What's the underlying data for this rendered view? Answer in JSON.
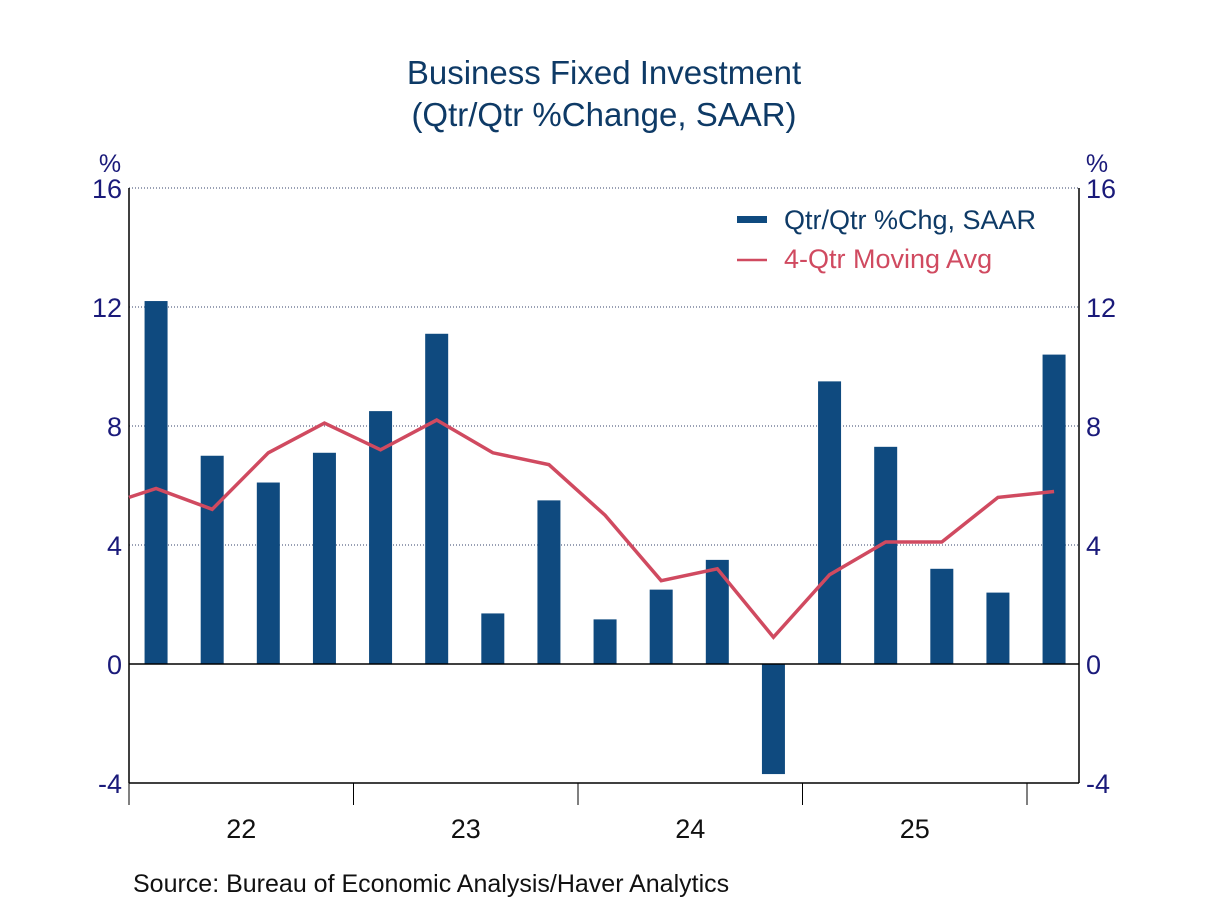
{
  "chart_data": {
    "type": "bar",
    "title": "Business Fixed Investment",
    "subtitle": "(Qtr/Qtr %Change, SAAR)",
    "ylabel_left": "%",
    "ylabel_right": "%",
    "ylim": [
      -4,
      16
    ],
    "yticks": [
      -4,
      0,
      4,
      8,
      12,
      16
    ],
    "grid": true,
    "legend_position": "top-right",
    "x_year_labels": [
      "22",
      "23",
      "24",
      "25"
    ],
    "categories": [
      "22Q1",
      "22Q2",
      "22Q3",
      "22Q4",
      "23Q1",
      "23Q2",
      "23Q3",
      "23Q4",
      "24Q1",
      "24Q2",
      "24Q3",
      "24Q4",
      "25Q1",
      "25Q2",
      "25Q3",
      "25Q4",
      "26Q1"
    ],
    "series": [
      {
        "name": "Qtr/Qtr %Chg, SAAR",
        "type": "bar",
        "color": "#0f4a7f",
        "values": [
          12.2,
          7.0,
          6.1,
          7.1,
          8.5,
          11.1,
          1.7,
          5.5,
          1.5,
          2.5,
          3.5,
          -3.7,
          9.5,
          7.3,
          3.2,
          2.4,
          10.4
        ]
      },
      {
        "name": "4-Qtr Moving Avg",
        "type": "line",
        "color": "#d04a60",
        "start_value": 5.6,
        "values": [
          5.9,
          5.2,
          7.1,
          8.1,
          7.2,
          8.2,
          7.1,
          6.7,
          5.0,
          2.8,
          3.2,
          0.9,
          3.0,
          4.1,
          4.1,
          5.6,
          5.8
        ]
      }
    ],
    "source": "Source:  Bureau of Economic Analysis/Haver Analytics"
  }
}
